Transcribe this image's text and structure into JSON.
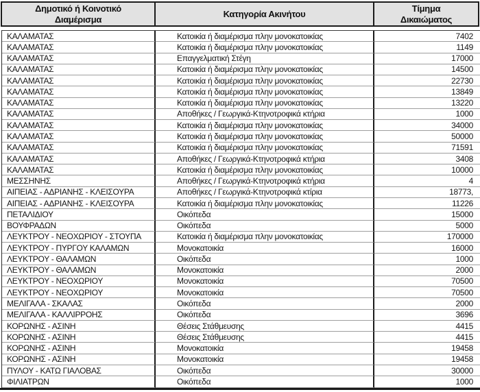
{
  "table": {
    "columns": [
      "Δημοτικό ή Κοινοτικό Διαμέρισμα",
      "Κατηγορία Ακινήτου",
      "Τίμημα Δικαιώματος"
    ],
    "rows": [
      [
        "ΚΑΛΑΜΑΤΑΣ",
        "Κατοικία ή διαμέρισμα πλην μονοκατοικίας",
        "7402"
      ],
      [
        "ΚΑΛΑΜΑΤΑΣ",
        "Κατοικία ή διαμέρισμα πλην μονοκατοικίας",
        "1149"
      ],
      [
        "ΚΑΛΑΜΑΤΑΣ",
        "Επαγγελματική Στέγη",
        "17000"
      ],
      [
        "ΚΑΛΑΜΑΤΑΣ",
        "Κατοικία ή διαμέρισμα πλην μονοκατοικίας",
        "14500"
      ],
      [
        "ΚΑΛΑΜΑΤΑΣ",
        "Κατοικία ή διαμέρισμα πλην μονοκατοικίας",
        "22730"
      ],
      [
        "ΚΑΛΑΜΑΤΑΣ",
        "Κατοικία ή διαμέρισμα πλην μονοκατοικίας",
        "13849"
      ],
      [
        "ΚΑΛΑΜΑΤΑΣ",
        "Κατοικία ή διαμέρισμα πλην μονοκατοικίας",
        "13220"
      ],
      [
        "ΚΑΛΑΜΑΤΑΣ",
        "Αποθήκες / Γεωργικά-Κτηνοτροφικά κτήρια",
        "1000"
      ],
      [
        "ΚΑΛΑΜΑΤΑΣ",
        "Κατοικία ή διαμέρισμα πλην μονοκατοικίας",
        "34000"
      ],
      [
        "ΚΑΛΑΜΑΤΑΣ",
        "Κατοικία ή διαμέρισμα πλην μονοκατοικίας",
        "50000"
      ],
      [
        "ΚΑΛΑΜΑΤΑΣ",
        "Κατοικία ή διαμέρισμα πλην μονοκατοικίας",
        "71591"
      ],
      [
        "ΚΑΛΑΜΑΤΑΣ",
        "Αποθήκες / Γεωργικά-Κτηνοτροφικά κτήρια",
        "3408"
      ],
      [
        "ΚΑΛΑΜΑΤΑΣ",
        "Κατοικία ή διαμέρισμα πλην μονοκατοικίας",
        "10000"
      ],
      [
        "ΜΕΣΣΗΝΗΣ",
        "Αποθήκες / Γεωργικά-Κτηνοτροφικά κτήρια",
        "4"
      ],
      [
        "ΑΙΠΕΙΑΣ - ΑΔΡΙΑΝΗΣ - ΚΛΕΙΣΟΥΡΑ",
        "Αποθήκες / Γεωργικά-Κτηνοτροφικά κτίρια",
        "18773,"
      ],
      [
        "ΑΙΠΕΙΑΣ - ΑΔΡΙΑΝΗΣ - ΚΛΕΙΣΟΥΡΑ",
        "Κατοικία ή διαμέρισμα πλην μονοκατοικίας",
        "11226"
      ],
      [
        "ΠΕΤΑΛΙΔΙΟΥ",
        "Οικόπεδα",
        "15000"
      ],
      [
        "ΒΟΥΦΡΑΔΩΝ",
        "Οικόπεδα",
        "5000"
      ],
      [
        "ΛΕΥΚΤΡΟΥ - ΝΕΟΧΩΡΙΟΥ - ΣΤΟΥΠΑ",
        "Κατοικία ή διαμέρισμα πλην μονοκατοικίας",
        "170000"
      ],
      [
        "ΛΕΥΚΤΡΟΥ - ΠΥΡΓΟΥ ΚΑΛΑΜΩΝ",
        "Μονοκατοικία",
        "16000"
      ],
      [
        "ΛΕΥΚΤΡΟΥ - ΘΑΛΑΜΩΝ",
        "Οικόπεδα",
        "1000"
      ],
      [
        "ΛΕΥΚΤΡΟΥ - ΘΑΛΑΜΩΝ",
        "Μονοκατοικία",
        "2000"
      ],
      [
        "ΛΕΥΚΤΡΟΥ - ΝΕΟΧΩΡΙΟΥ",
        "Μονοκατοικία",
        "70500"
      ],
      [
        "ΛΕΥΚΤΡΟΥ - ΝΕΟΧΩΡΙΟΥ",
        "Μονοκατοικία",
        "70500"
      ],
      [
        "ΜΕΛΙΓΑΛΑ - ΣΚΑΛΑΣ",
        "Οικόπεδα",
        "2000"
      ],
      [
        "ΜΕΛΙΓΑΛΑ - ΚΑΛΛΙΡΡΟΗΣ",
        "Οικόπεδα",
        "3696"
      ],
      [
        "ΚΟΡΩΝΗΣ - ΑΣΙΝΗ",
        "Θέσεις Στάθμευσης",
        "4415"
      ],
      [
        "ΚΟΡΩΝΗΣ - ΑΣΙΝΗ",
        "Θέσεις Στάθμευσης",
        "4415"
      ],
      [
        "ΚΟΡΩΝΗΣ - ΑΣΙΝΗ",
        "Μονοκατοικία",
        "19458"
      ],
      [
        "ΚΟΡΩΝΗΣ - ΑΣΙΝΗ",
        "Μονοκατοικία",
        "19458"
      ],
      [
        "ΠΥΛΟΥ - ΚΑΤΩ ΓΙΑΛΟΒΑΣ",
        "Οικόπεδα",
        "30000"
      ],
      [
        "ΦΙΛΙΑΤΡΩΝ",
        "Οικόπεδα",
        "1000"
      ]
    ]
  },
  "colors": {
    "header_bg": "#e2e2e2",
    "border_dark": "#1a1a1a",
    "row_separator": "#9e9e9e",
    "text": "#161616"
  }
}
